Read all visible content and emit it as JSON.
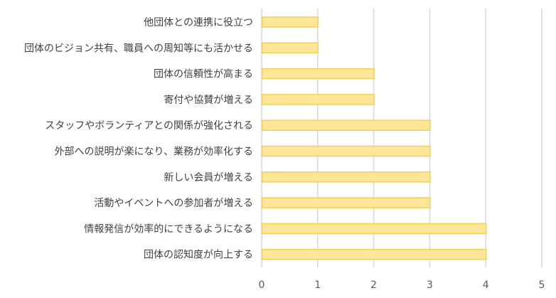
{
  "chart_data": {
    "type": "bar",
    "orientation": "horizontal",
    "title": "",
    "xlabel": "",
    "ylabel": "",
    "categories": [
      "他団体との連携に役立つ",
      "団体のビジョン共有、職員への周知等にも活かせる",
      "団体の信頼性が高まる",
      "寄付や協賛が増える",
      "スタッフやボランティアとの関係が強化される",
      "外部への説明が楽になり、業務が効率化する",
      "新しい会員が増える",
      "活動やイベントへの参加者が増える",
      "情報発信が効率的にできるようになる",
      "団体の認知度が向上する"
    ],
    "values": [
      1,
      1,
      2,
      2,
      3,
      3,
      3,
      3,
      4,
      4
    ],
    "xlim": [
      0,
      5
    ],
    "xticks": [
      0,
      1,
      2,
      3,
      4,
      5
    ],
    "grid": "vertical",
    "legend": "none",
    "colors": {
      "bar_fill": "#FFE699",
      "bar_stroke": "#F2CF5B",
      "grid": "#D9D9D9"
    }
  }
}
